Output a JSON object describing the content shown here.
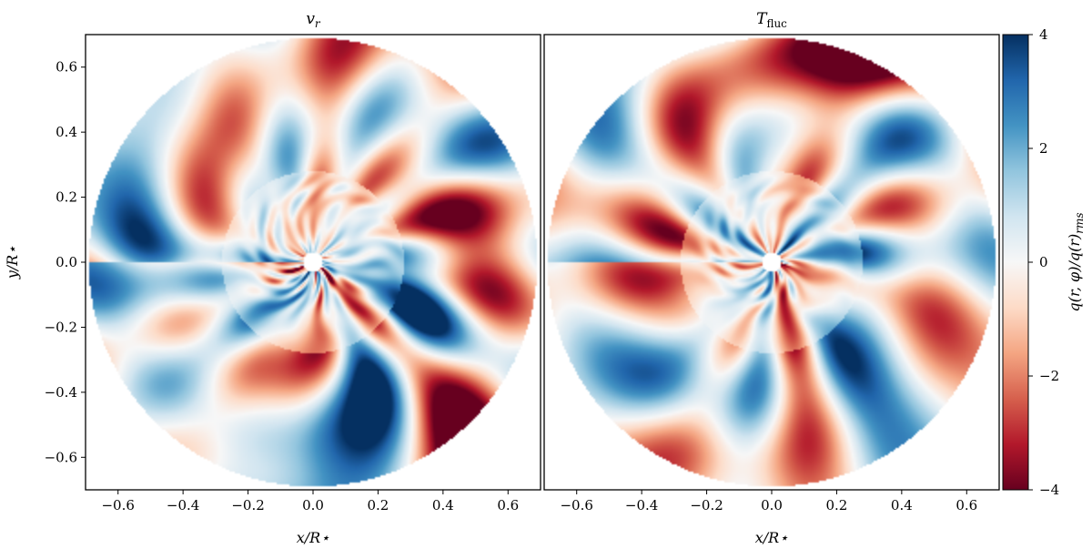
{
  "chart_data": [
    {
      "type": "heatmap",
      "title": "v_r",
      "title_main": "v",
      "title_sub": "r",
      "xlabel": "x/R⋆",
      "ylabel": "y/R⋆",
      "xlim": [
        -0.7,
        0.7
      ],
      "ylim": [
        -0.7,
        0.7
      ],
      "xticks": [
        -0.6,
        -0.4,
        -0.2,
        0.0,
        0.2,
        0.4,
        0.6
      ],
      "xtick_labels": [
        "−0.6",
        "−0.4",
        "−0.2",
        "0.0",
        "0.2",
        "0.4",
        "0.6"
      ],
      "yticks": [
        -0.6,
        -0.4,
        -0.2,
        0.0,
        0.2,
        0.4,
        0.6
      ],
      "ytick_labels": [
        "−0.6",
        "−0.4",
        "−0.2",
        "0.0",
        "0.2",
        "0.4",
        "0.6"
      ],
      "domain": {
        "shape": "disk",
        "outer_radius": 0.69,
        "inner_radius": 0.03
      },
      "colormap": "RdBu",
      "seed": 3
    },
    {
      "type": "heatmap",
      "title": "T_fluc",
      "title_main": "T",
      "title_sub": "fluc",
      "xlabel": "x/R⋆",
      "xlim": [
        -0.7,
        0.7
      ],
      "ylim": [
        -0.7,
        0.7
      ],
      "xticks": [
        -0.6,
        -0.4,
        -0.2,
        0.0,
        0.2,
        0.4,
        0.6
      ],
      "xtick_labels": [
        "−0.6",
        "−0.4",
        "−0.2",
        "0.0",
        "0.2",
        "0.4",
        "0.6"
      ],
      "domain": {
        "shape": "disk",
        "outer_radius": 0.69,
        "inner_radius": 0.03
      },
      "colormap": "RdBu",
      "seed": 11
    }
  ],
  "colorbar": {
    "label": "q(r, φ)/q(r)rms",
    "label_main": "q(r, φ)/q(r)",
    "label_sub": "rms",
    "range": [
      -4,
      4
    ],
    "ticks": [
      -4,
      -2,
      0,
      2,
      4
    ],
    "tick_labels": [
      "−4",
      "−2",
      "0",
      "2",
      "4"
    ],
    "colors": [
      "#67001f",
      "#b2182b",
      "#d6604d",
      "#f4a582",
      "#fddbc7",
      "#f7f7f7",
      "#d1e5f0",
      "#92c5de",
      "#4393c3",
      "#2166ac",
      "#053061"
    ]
  }
}
